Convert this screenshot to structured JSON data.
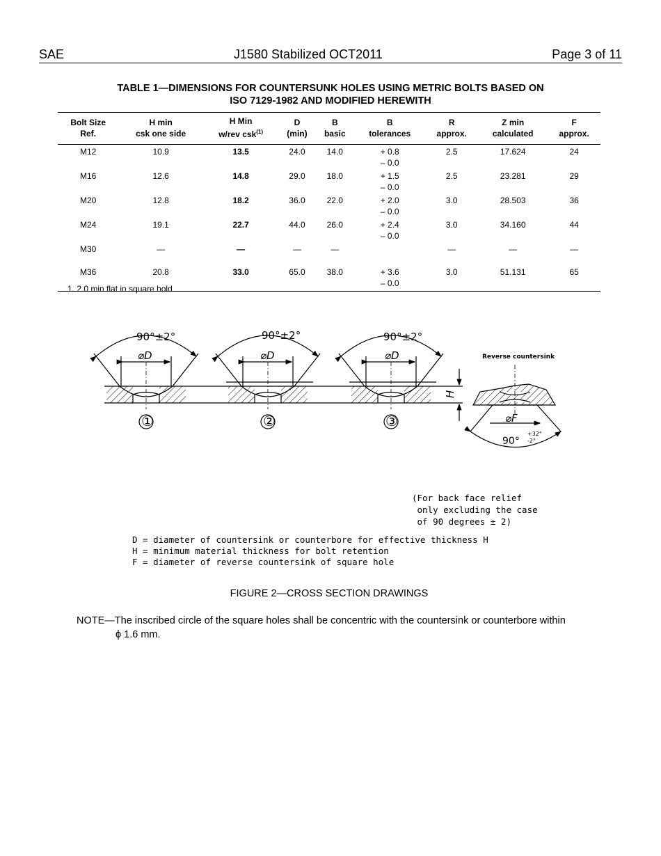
{
  "header": {
    "left": "SAE",
    "center": "J1580 Stabilized OCT2011",
    "right": "Page 3 of 11"
  },
  "table": {
    "title_line1": "TABLE 1—DIMENSIONS FOR COUNTERSUNK HOLES USING METRIC BOLTS BASED ON",
    "title_line2": "ISO 7129-1982 AND MODIFIED HEREWITH",
    "columns": [
      {
        "l1": "Bolt Size",
        "l2": "Ref."
      },
      {
        "l1": "H min",
        "l2": "csk one side"
      },
      {
        "l1": "H Min",
        "l2": "w/rev csk",
        "sup": "(1)"
      },
      {
        "l1": "D",
        "l2": "(min)"
      },
      {
        "l1": "B",
        "l2": "basic"
      },
      {
        "l1": "B",
        "l2": "tolerances"
      },
      {
        "l1": "R",
        "l2": "approx."
      },
      {
        "l1": "Z min",
        "l2": "calculated"
      },
      {
        "l1": "F",
        "l2": "approx."
      }
    ],
    "rows": [
      [
        "M12",
        "10.9",
        "13.5",
        "24.0",
        "14.0",
        "+ 0.8",
        "– 0.0",
        "2.5",
        "17.624",
        "24"
      ],
      [
        "M16",
        "12.6",
        "14.8",
        "29.0",
        "18.0",
        "+ 1.5",
        "– 0.0",
        "2.5",
        "23.281",
        "29"
      ],
      [
        "M20",
        "12.8",
        "18.2",
        "36.0",
        "22.0",
        "+ 2.0",
        "– 0.0",
        "3.0",
        "28.503",
        "36"
      ],
      [
        "M24",
        "19.1",
        "22.7",
        "44.0",
        "26.0",
        "+ 2.4",
        "– 0.0",
        "3.0",
        "34.160",
        "44"
      ],
      [
        "M30",
        "—",
        "—",
        "—",
        "—",
        "",
        "",
        "—",
        "—",
        "—"
      ],
      [
        "M36",
        "20.8",
        "33.0",
        "65.0",
        "38.0",
        "+ 3.6",
        "– 0.0",
        "3.0",
        "51.131",
        "65"
      ]
    ],
    "footnote": "1.   2.0 min flat in square hold"
  },
  "figure": {
    "angle": "90°±2°",
    "dia_d": "⌀D",
    "dia_f": "⌀F",
    "h": "H",
    "callouts": [
      "①",
      "②",
      "③"
    ],
    "reverse_label": "Reverse countersink",
    "reverse_angle": "90°",
    "reverse_tol_plus": "+32°",
    "reverse_tol_minus": "-2°",
    "relief_note": "(For back face relief\n only excluding the case\n of 90 degrees ± 2)",
    "legend": "D = diameter of countersink or counterbore for effective thickness H\nH = minimum material thickness for bolt retention\nF = diameter of reverse countersink of square hole",
    "caption": "FIGURE 2—CROSS SECTION DRAWINGS"
  },
  "note": {
    "line1": "NOTE—The inscribed circle of the square holes shall be concentric with the countersink or counterbore within",
    "line2": "ϕ 1.6 mm."
  }
}
